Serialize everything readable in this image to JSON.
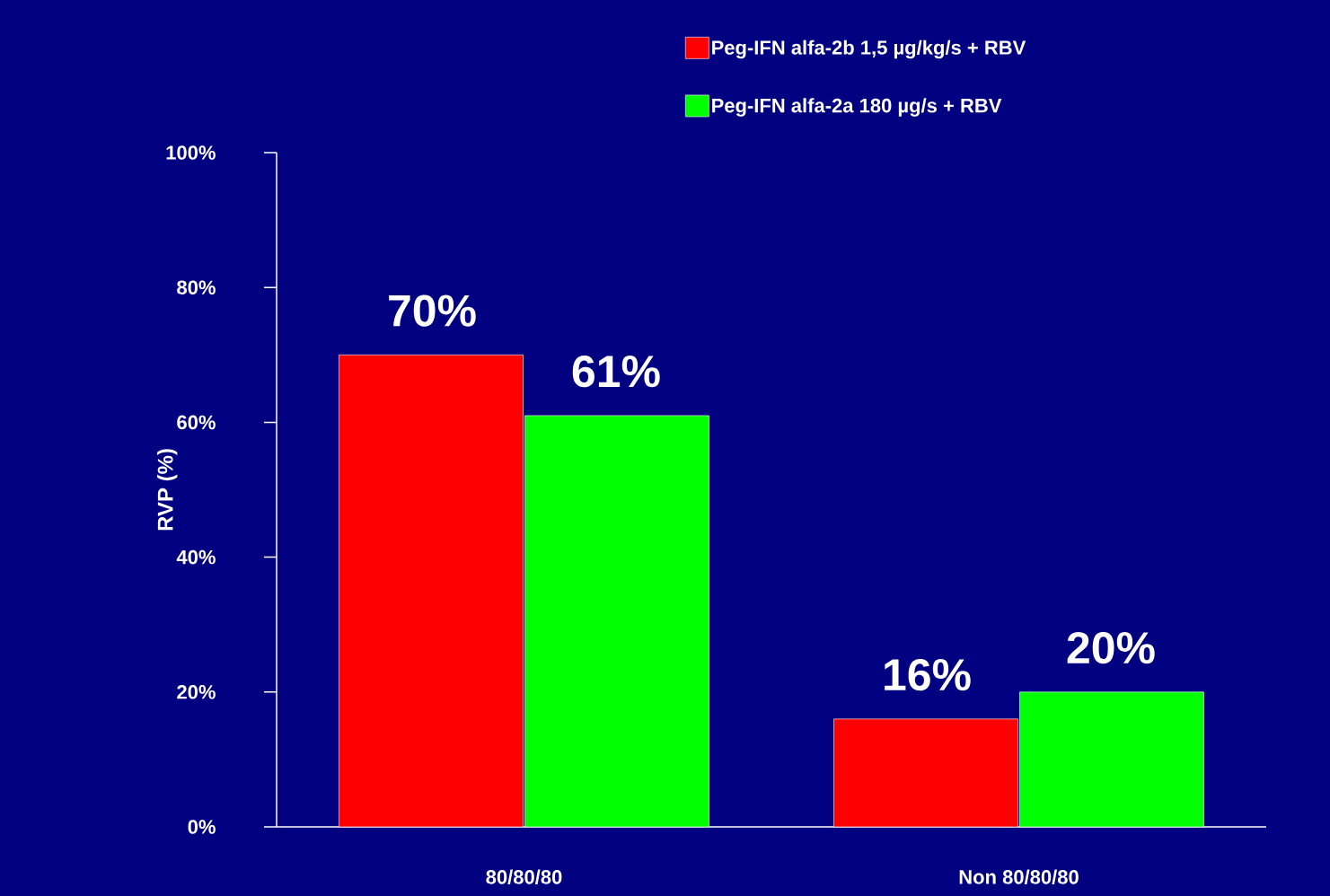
{
  "chart_data": {
    "type": "bar",
    "ylabel": "RVP (%)",
    "categories": [
      "80/80/80",
      "Non 80/80/80"
    ],
    "series": [
      {
        "name": "Peg-IFN alfa-2b 1,5 µg/kg/s + RBV",
        "color": "#ff0000",
        "values": [
          70,
          16
        ],
        "value_labels": [
          "70%",
          "16%"
        ]
      },
      {
        "name": "Peg-IFN alfa-2a 180 µg/s + RBV",
        "color": "#00ff00",
        "values": [
          61,
          20
        ],
        "value_labels": [
          "61%",
          "20%"
        ]
      }
    ],
    "ylim": [
      0,
      100
    ],
    "yticks": [
      {
        "value": 0,
        "label": "0%"
      },
      {
        "value": 20,
        "label": "20%"
      },
      {
        "value": 40,
        "label": "40%"
      },
      {
        "value": 60,
        "label": "60%"
      },
      {
        "value": 80,
        "label": "80%"
      },
      {
        "value": 100,
        "label": "100%"
      }
    ],
    "legend": "top"
  }
}
